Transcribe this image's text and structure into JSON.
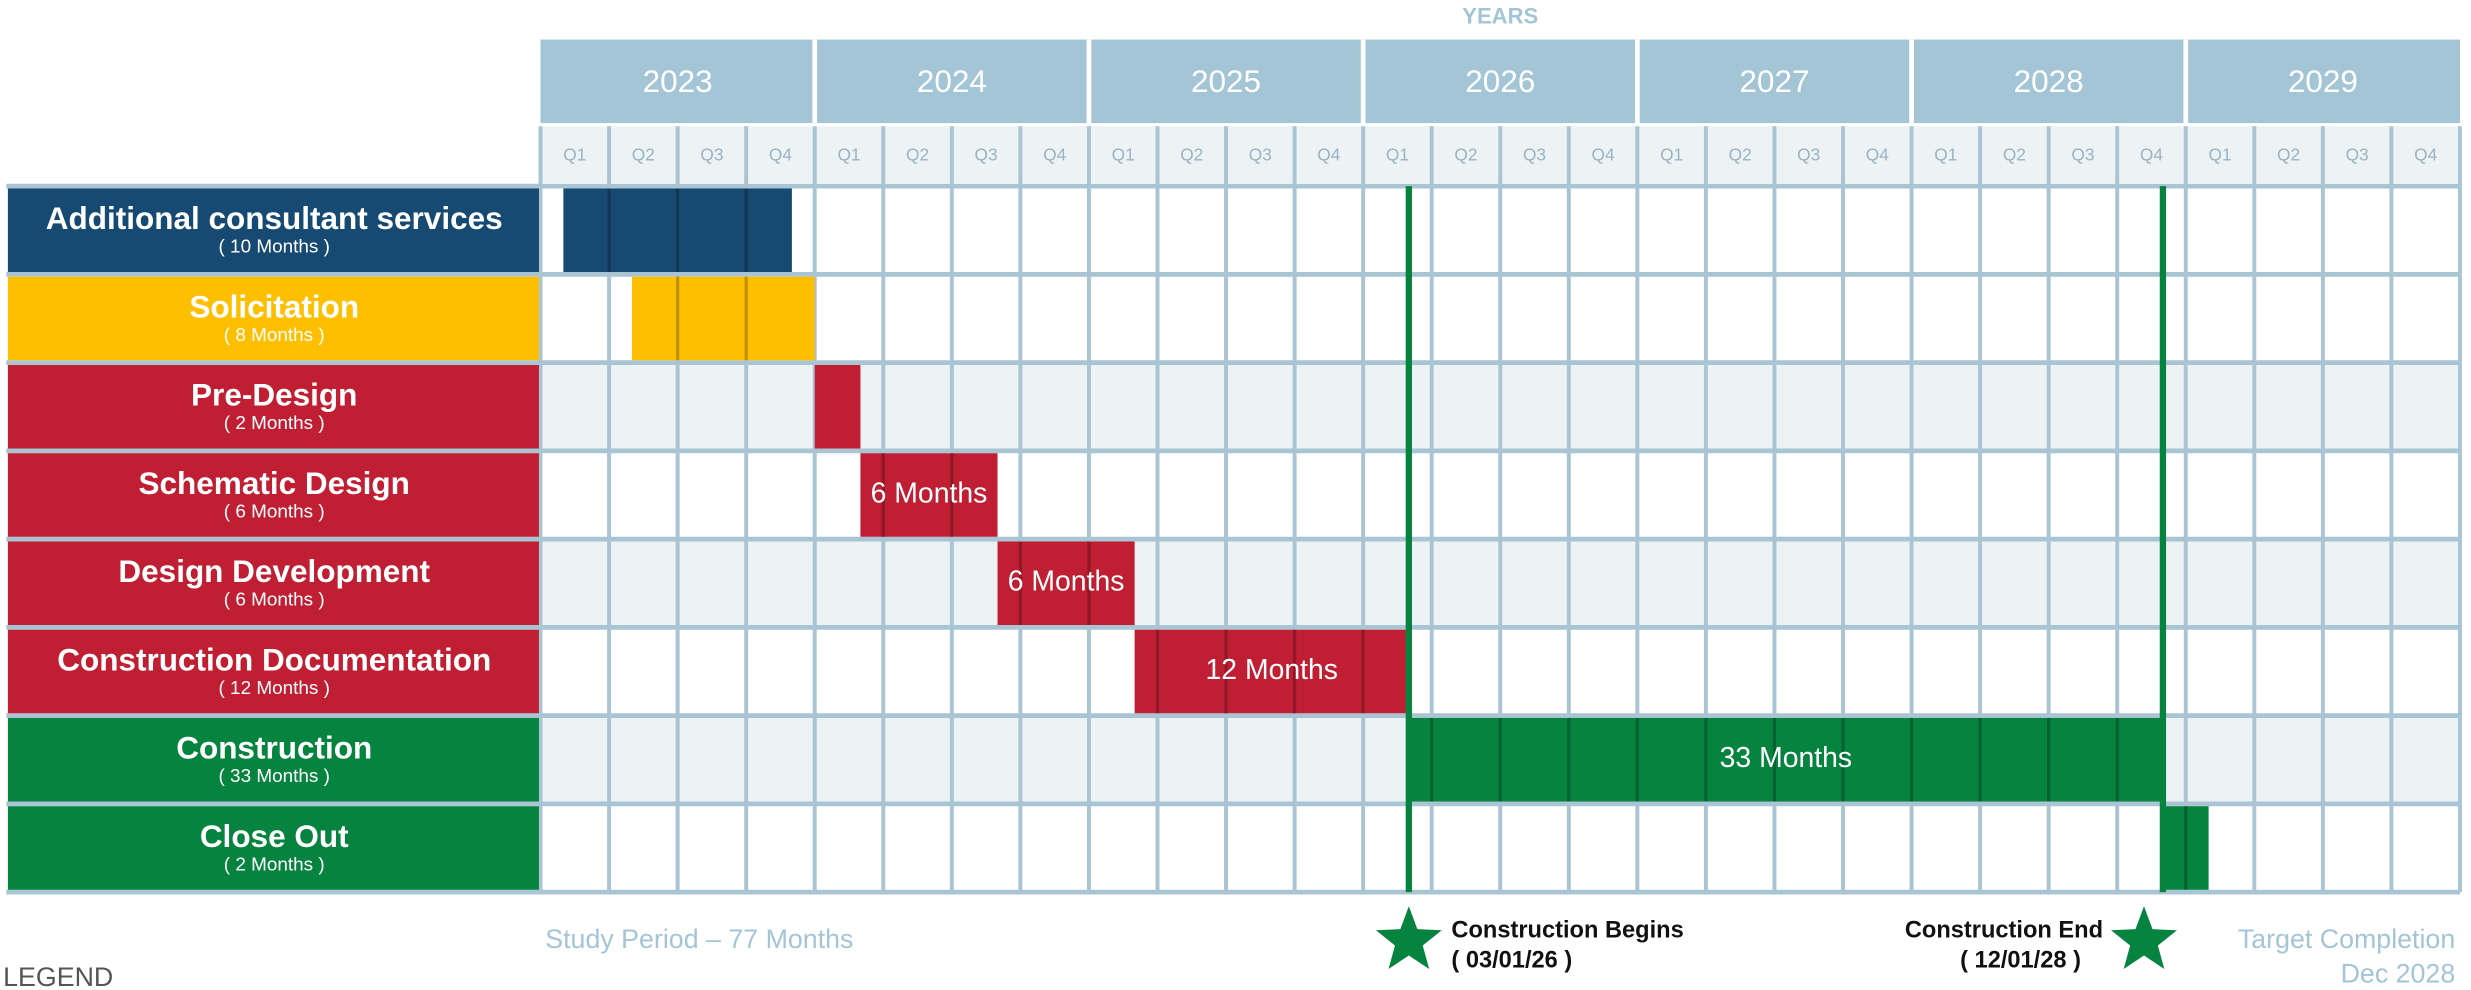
{
  "chart_data": {
    "type": "gantt",
    "axis_title": "YEARS",
    "xlim": [
      0,
      84
    ],
    "year_ticks": [
      {
        "value": 0,
        "label": "2023"
      },
      {
        "value": 12,
        "label": "2024"
      },
      {
        "value": 24,
        "label": "2025"
      },
      {
        "value": 36,
        "label": "2026"
      },
      {
        "value": 48,
        "label": "2027"
      },
      {
        "value": 60,
        "label": "2028"
      },
      {
        "value": 72,
        "label": "2029"
      }
    ],
    "quarter_ticks": [
      {
        "value": 0,
        "label": "Q1"
      },
      {
        "value": 3,
        "label": "Q2"
      },
      {
        "value": 6,
        "label": "Q3"
      },
      {
        "value": 9,
        "label": "Q4"
      },
      {
        "value": 12,
        "label": "Q1"
      },
      {
        "value": 15,
        "label": "Q2"
      },
      {
        "value": 18,
        "label": "Q3"
      },
      {
        "value": 21,
        "label": "Q4"
      },
      {
        "value": 24,
        "label": "Q1"
      },
      {
        "value": 27,
        "label": "Q2"
      },
      {
        "value": 30,
        "label": "Q3"
      },
      {
        "value": 33,
        "label": "Q4"
      },
      {
        "value": 36,
        "label": "Q1"
      },
      {
        "value": 39,
        "label": "Q2"
      },
      {
        "value": 42,
        "label": "Q3"
      },
      {
        "value": 45,
        "label": "Q4"
      },
      {
        "value": 48,
        "label": "Q1"
      },
      {
        "value": 51,
        "label": "Q2"
      },
      {
        "value": 54,
        "label": "Q3"
      },
      {
        "value": 57,
        "label": "Q4"
      },
      {
        "value": 60,
        "label": "Q1"
      },
      {
        "value": 63,
        "label": "Q2"
      },
      {
        "value": 66,
        "label": "Q3"
      },
      {
        "value": 69,
        "label": "Q4"
      },
      {
        "value": 72,
        "label": "Q1"
      },
      {
        "value": 75,
        "label": "Q2"
      },
      {
        "value": 78,
        "label": "Q3"
      },
      {
        "value": 81,
        "label": "Q4"
      }
    ],
    "categories": [
      "Additional consultant services",
      "Solicitation",
      "Pre-Design",
      "Schematic Design",
      "Design Development",
      "Construction Documentation",
      "Construction",
      "Close Out"
    ],
    "starts": [
      1,
      4,
      12,
      14,
      20,
      26,
      38,
      71
    ],
    "values": [
      10,
      8,
      2,
      6,
      6,
      12,
      33,
      2
    ],
    "value_labels": [
      "( 10 Months )",
      "( 8 Months )",
      "( 2 Months )",
      "( 6 Months )",
      "( 6 Months )",
      "( 12 Months )",
      "( 33 Months )",
      "( 2 Months )"
    ],
    "bar_labels": [
      null,
      null,
      null,
      "6 Months",
      "6 Months",
      "12 Months",
      "33 Months",
      null
    ],
    "colors": [
      "#174a72",
      "#fdbf00",
      "#c01f33",
      "#c01f33",
      "#c01f33",
      "#c01f33",
      "#06833f",
      "#06833f"
    ],
    "milestones": [
      {
        "label": "Construction Begins",
        "date": "( 03/01/26 )",
        "x": 38
      },
      {
        "label": "Construction End",
        "date": "( 12/01/28 )",
        "x": 71
      }
    ],
    "milestone_color": "#06833f",
    "study_period": "Study Period – 77 Months",
    "target": [
      "Target Completion",
      "Dec 2028"
    ],
    "legend_title": "LEGEND"
  }
}
